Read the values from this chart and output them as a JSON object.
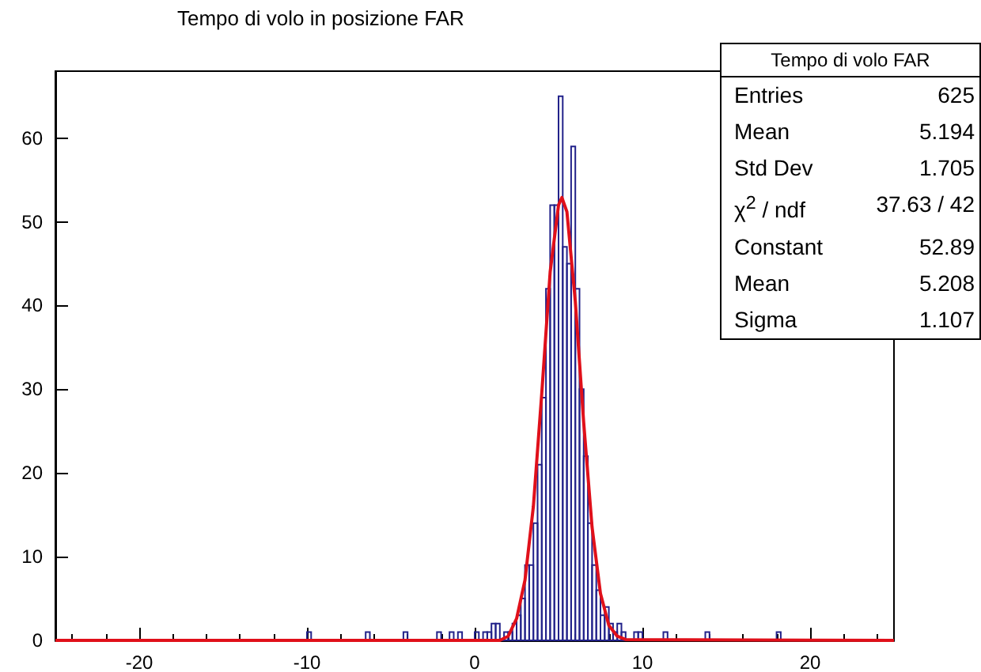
{
  "chart_data": {
    "type": "histogram",
    "title": "Tempo di volo in posizione FAR",
    "bins": [
      -10,
      -9.75,
      -9.5,
      -9.25,
      -9,
      -8.75,
      -8.5,
      -8.25,
      -8,
      -7.75,
      -7.5,
      -7.25,
      -7,
      -6.75,
      -6.5,
      -6.25,
      -6,
      -5.75,
      -5.5,
      -5.25,
      -5,
      -4.75,
      -4.5,
      -4.25,
      -4,
      -3.75,
      -3.5,
      -3.25,
      -3,
      -2.75,
      -2.5,
      -2.25,
      -2,
      -1.75,
      -1.5,
      -1.25,
      -1,
      -0.75,
      -0.5,
      -0.25,
      0,
      0.25,
      0.5,
      0.75,
      1,
      1.25,
      1.5,
      1.75,
      2,
      2.25,
      2.5,
      2.75,
      3,
      3.25,
      3.5,
      3.75,
      4,
      4.25,
      4.5,
      4.75,
      5,
      5.25,
      5.5,
      5.75,
      6,
      6.25,
      6.5,
      6.75,
      7,
      7.25,
      7.5,
      7.75,
      8,
      8.25,
      8.5,
      8.75,
      9,
      9.25,
      9.5,
      9.75,
      10,
      10.25,
      10.5,
      10.75,
      11,
      11.25,
      11.5,
      11.75,
      12,
      12.25,
      12.5,
      12.75,
      13,
      13.25,
      13.5,
      13.75,
      14,
      14.25,
      14.5,
      14.75,
      15,
      15.25,
      15.5,
      15.75,
      16,
      16.25,
      16.5,
      16.75,
      17,
      17.25,
      17.5,
      17.75,
      18,
      18.25,
      18.5
    ],
    "series": [
      {
        "color": "#22228a",
        "values": [
          1,
          0,
          0,
          0,
          0,
          0,
          0,
          0,
          0,
          0,
          0,
          0,
          0,
          0,
          1,
          0,
          0,
          0,
          0,
          0,
          0,
          0,
          0,
          1,
          0,
          0,
          0,
          0,
          0,
          0,
          0,
          1,
          0,
          0,
          1,
          0,
          1,
          0,
          0,
          0,
          1,
          0,
          1,
          1,
          2,
          2,
          0,
          1,
          1,
          2,
          3,
          5,
          9,
          9,
          14,
          21,
          29,
          42,
          52,
          52,
          65,
          47,
          45,
          59,
          42,
          30,
          22,
          14,
          9,
          6,
          3,
          4,
          2,
          1,
          2,
          1,
          0,
          0,
          1,
          1,
          0,
          0,
          0,
          0,
          0,
          1,
          0,
          0,
          0,
          0,
          0,
          0,
          0,
          0,
          0,
          1,
          0,
          0,
          0,
          0,
          0,
          0,
          0,
          0,
          0,
          0,
          0,
          0,
          0,
          0,
          0,
          0,
          1,
          0
        ]
      },
      {
        "type": "line",
        "color": "#e0101a",
        "x": [
          -25,
          1.5,
          2,
          2.5,
          3,
          3.5,
          4,
          4.5,
          5,
          5.2,
          5.5,
          6,
          6.5,
          7,
          7.5,
          8,
          8.5,
          9,
          25
        ],
        "values": [
          0,
          0,
          0.5,
          2.6,
          7.2,
          16,
          29.5,
          44,
          52,
          52.9,
          51.2,
          40.5,
          26,
          13.5,
          5.6,
          1.8,
          0.5,
          0.1,
          0
        ]
      }
    ],
    "xlim": [
      -25,
      25
    ],
    "xticks": [
      -20,
      -10,
      0,
      10,
      20
    ],
    "ylim": [
      0,
      68
    ],
    "yticks": [
      0,
      10,
      20,
      30,
      40,
      50,
      60
    ],
    "grid": false,
    "marker": "none",
    "annotations": [
      "Tempo di volo FAR",
      "Entries",
      "625",
      "Mean",
      "5.194",
      "Std Dev",
      "1.705",
      "χ$^{2}$ / ndf",
      "37.63 / 42",
      "Constant",
      "52.89",
      "Mean",
      "5.208",
      "Sigma",
      "1.107"
    ]
  }
}
